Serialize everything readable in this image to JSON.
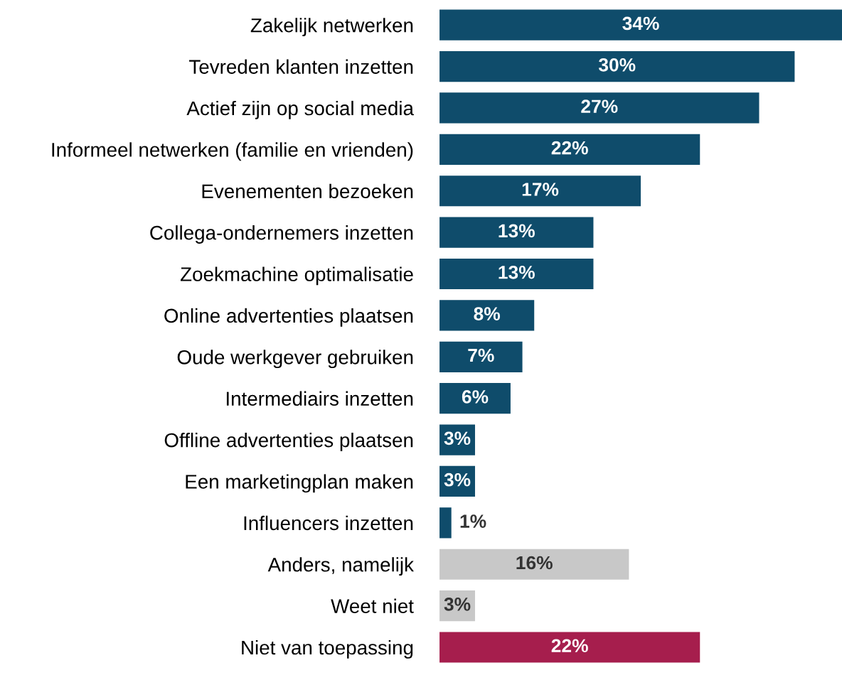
{
  "chart_data": {
    "type": "bar",
    "orientation": "horizontal",
    "grid": false,
    "tick_labels": "y",
    "categories": [
      "Zakelijk netwerken",
      "Tevreden klanten inzetten",
      "Actief zijn op social media",
      "Informeel netwerken (familie en vrienden)",
      "Evenementen bezoeken",
      "Collega-ondernemers inzetten",
      "Zoekmachine optimalisatie",
      "Online advertenties plaatsen",
      "Oude werkgever gebruiken",
      "Intermediairs inzetten",
      "Offline advertenties plaatsen",
      "Een marketingplan maken",
      "Influencers inzetten",
      "Anders, namelijk",
      "Weet niet",
      "Niet van toepassing"
    ],
    "values": [
      34,
      30,
      27,
      22,
      17,
      13,
      13,
      8,
      7,
      6,
      3,
      3,
      1,
      16,
      3,
      22
    ],
    "value_labels": [
      "34%",
      "30%",
      "27%",
      "22%",
      "17%",
      "13%",
      "13%",
      "8%",
      "7%",
      "6%",
      "3%",
      "3%",
      "1%",
      "16%",
      "3%",
      "22%"
    ],
    "colors": [
      "#0f4c6b",
      "#0f4c6b",
      "#0f4c6b",
      "#0f4c6b",
      "#0f4c6b",
      "#0f4c6b",
      "#0f4c6b",
      "#0f4c6b",
      "#0f4c6b",
      "#0f4c6b",
      "#0f4c6b",
      "#0f4c6b",
      "#0f4c6b",
      "#c8c8c8",
      "#c8c8c8",
      "#a61e4d"
    ]
  }
}
